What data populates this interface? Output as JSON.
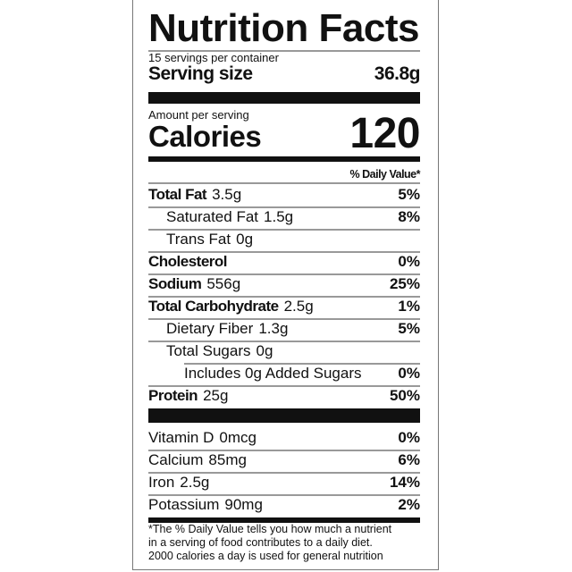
{
  "title": "Nutrition Facts",
  "servings_per_container": "15 servings per container",
  "serving_size_label": "Serving size",
  "serving_size_value": "36.8g",
  "amount_per_serving": "Amount per serving",
  "calories_label": "Calories",
  "calories_value": "120",
  "daily_value_header": "% Daily Value*",
  "nutrients": [
    {
      "name": "Total Fat",
      "amount": "3.5g",
      "dv": "5%"
    },
    {
      "name": "Saturated Fat",
      "amount": "1.5g",
      "dv": "8%"
    },
    {
      "name": "Trans Fat",
      "amount": "0g",
      "dv": ""
    },
    {
      "name": "Cholesterol",
      "amount": "",
      "dv": "0%"
    },
    {
      "name": "Sodium",
      "amount": "556g",
      "dv": "25%"
    },
    {
      "name": "Total Carbohydrate",
      "amount": "2.5g",
      "dv": "1%"
    },
    {
      "name": "Dietary Fiber",
      "amount": "1.3g",
      "dv": "5%"
    },
    {
      "name": "Total Sugars",
      "amount": "0g",
      "dv": ""
    },
    {
      "name": "Includes 0g Added Sugars",
      "amount": "",
      "dv": "0%"
    },
    {
      "name": "Protein",
      "amount": "25g",
      "dv": "50%"
    }
  ],
  "vitamins": [
    {
      "name": "Vitamin D",
      "amount": "0mcg",
      "dv": "0%"
    },
    {
      "name": "Calcium",
      "amount": "85mg",
      "dv": "6%"
    },
    {
      "name": "Iron",
      "amount": "2.5g",
      "dv": "14%"
    },
    {
      "name": "Potassium",
      "amount": "90mg",
      "dv": "2%"
    }
  ],
  "footnote": [
    "*The % Daily Value tells you how much a nutrient",
    "in a serving of food contributes to a daily diet.",
    "2000 calories a day is used for general nutrition"
  ]
}
